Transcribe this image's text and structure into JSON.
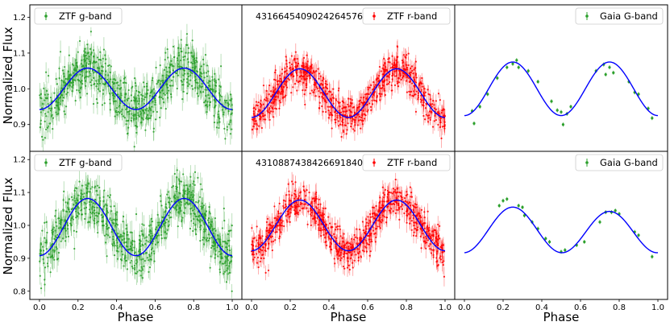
{
  "figure": {
    "ylabel": "Normalized Flux",
    "xlabel": "Phase"
  },
  "chart_data": [
    {
      "type": "scatter",
      "row": 0,
      "col": 0,
      "title": "",
      "xlabel": "",
      "ylabel": "Normalized Flux",
      "xlim": [
        -0.05,
        1.05
      ],
      "ylim": [
        0.825,
        1.235
      ],
      "yticks": [
        0.9,
        1.0,
        1.1,
        1.2
      ],
      "xticks": [],
      "legend": {
        "label": "ZTF g-band",
        "placement": "top-left"
      },
      "object_id": "",
      "series": [
        {
          "name": "ZTF g-band",
          "color": "#2ca02c",
          "model": {
            "mean": 1.0,
            "amp2": 0.058,
            "amp1": 0.0,
            "phase_ref": 0.25
          },
          "n_points": 850,
          "scatter": 0.035,
          "errorbar": 0.025
        }
      ],
      "fit_color": "#0000ff"
    },
    {
      "type": "scatter",
      "row": 0,
      "col": 1,
      "title": "",
      "xlabel": "",
      "ylabel": "",
      "xlim": [
        -0.05,
        1.05
      ],
      "ylim": [
        0.825,
        1.235
      ],
      "yticks": [],
      "xticks": [],
      "legend": {
        "label": "ZTF r-band",
        "placement": "top-right"
      },
      "object_id": "4316645409024264576",
      "series": [
        {
          "name": "ZTF r-band",
          "color": "#ff0000",
          "model": {
            "mean": 0.988,
            "amp2": 0.068,
            "amp1": 0.0,
            "phase_ref": 0.25
          },
          "n_points": 850,
          "scatter": 0.025,
          "errorbar": 0.02
        }
      ],
      "fit_color": "#0000ff"
    },
    {
      "type": "scatter",
      "row": 0,
      "col": 2,
      "title": "",
      "xlabel": "",
      "ylabel": "",
      "xlim": [
        -0.05,
        1.05
      ],
      "ylim": [
        0.825,
        1.235
      ],
      "yticks": [],
      "xticks": [],
      "legend": {
        "label": "Gaia G-band",
        "placement": "top-right"
      },
      "object_id": "",
      "series": [
        {
          "name": "Gaia G-band",
          "color": "#2ca02c",
          "points": [
            {
              "x": 0.04,
              "y": 0.938
            },
            {
              "x": 0.05,
              "y": 0.903
            },
            {
              "x": 0.08,
              "y": 0.95
            },
            {
              "x": 0.12,
              "y": 0.985
            },
            {
              "x": 0.17,
              "y": 1.03
            },
            {
              "x": 0.22,
              "y": 1.06
            },
            {
              "x": 0.25,
              "y": 1.07
            },
            {
              "x": 0.27,
              "y": 1.08
            },
            {
              "x": 0.28,
              "y": 1.06
            },
            {
              "x": 0.33,
              "y": 1.05
            },
            {
              "x": 0.38,
              "y": 1.02
            },
            {
              "x": 0.45,
              "y": 0.965
            },
            {
              "x": 0.48,
              "y": 0.94
            },
            {
              "x": 0.5,
              "y": 0.935
            },
            {
              "x": 0.51,
              "y": 0.9
            },
            {
              "x": 0.53,
              "y": 0.93
            },
            {
              "x": 0.55,
              "y": 0.95
            },
            {
              "x": 0.68,
              "y": 1.05
            },
            {
              "x": 0.72,
              "y": 1.068
            },
            {
              "x": 0.73,
              "y": 1.04
            },
            {
              "x": 0.75,
              "y": 1.06
            },
            {
              "x": 0.77,
              "y": 1.045
            },
            {
              "x": 0.85,
              "y": 1.02
            },
            {
              "x": 0.88,
              "y": 0.99
            },
            {
              "x": 0.9,
              "y": 0.985
            },
            {
              "x": 0.95,
              "y": 0.945
            },
            {
              "x": 0.97,
              "y": 0.918
            }
          ]
        }
      ],
      "model": {
        "mean": 1.0,
        "amp2": 0.075,
        "amp1": 0.0,
        "phase_ref": 0.25
      },
      "fit_color": "#0000ff"
    },
    {
      "type": "scatter",
      "row": 1,
      "col": 0,
      "title": "",
      "xlabel": "Phase",
      "ylabel": "Normalized Flux",
      "xlim": [
        -0.05,
        1.05
      ],
      "ylim": [
        0.775,
        1.225
      ],
      "yticks": [
        0.8,
        0.9,
        1.0,
        1.1,
        1.2
      ],
      "xticks": [
        "0.0",
        "0.2",
        "0.4",
        "0.6",
        "0.8",
        "1.0"
      ],
      "legend": {
        "label": "ZTF g-band",
        "placement": "top-left"
      },
      "object_id": "",
      "series": [
        {
          "name": "ZTF g-band",
          "color": "#2ca02c",
          "model": {
            "mean": 0.995,
            "amp2": 0.087,
            "amp1": 0.0,
            "phase_ref": 0.25
          },
          "n_points": 850,
          "scatter": 0.04,
          "errorbar": 0.028
        }
      ],
      "fit_color": "#0000ff"
    },
    {
      "type": "scatter",
      "row": 1,
      "col": 1,
      "title": "",
      "xlabel": "Phase",
      "ylabel": "",
      "xlim": [
        -0.05,
        1.05
      ],
      "ylim": [
        0.775,
        1.225
      ],
      "yticks": [],
      "xticks": [
        "0.0",
        "0.2",
        "0.4",
        "0.6",
        "0.8",
        "1.0"
      ],
      "legend": {
        "label": "ZTF r-band",
        "placement": "top-right"
      },
      "object_id": "4310887438426691840",
      "series": [
        {
          "name": "ZTF r-band",
          "color": "#ff0000",
          "model": {
            "mean": 1.0,
            "amp2": 0.077,
            "amp1": 0.0,
            "phase_ref": 0.25
          },
          "n_points": 850,
          "scatter": 0.028,
          "errorbar": 0.022
        }
      ],
      "fit_color": "#0000ff"
    },
    {
      "type": "scatter",
      "row": 1,
      "col": 2,
      "title": "",
      "xlabel": "Phase",
      "ylabel": "",
      "xlim": [
        -0.05,
        1.05
      ],
      "ylim": [
        0.775,
        1.225
      ],
      "yticks": [],
      "xticks": [
        "0.0",
        "0.2",
        "0.4",
        "0.6",
        "0.8",
        "1.0"
      ],
      "legend": {
        "label": "Gaia G-band",
        "placement": "top-right"
      },
      "object_id": "",
      "series": [
        {
          "name": "Gaia G-band",
          "color": "#2ca02c",
          "points": [
            {
              "x": 0.18,
              "y": 1.06
            },
            {
              "x": 0.2,
              "y": 1.075
            },
            {
              "x": 0.22,
              "y": 1.08
            },
            {
              "x": 0.28,
              "y": 1.06
            },
            {
              "x": 0.3,
              "y": 1.055
            },
            {
              "x": 0.31,
              "y": 1.03
            },
            {
              "x": 0.35,
              "y": 1.01
            },
            {
              "x": 0.38,
              "y": 0.99
            },
            {
              "x": 0.42,
              "y": 0.96
            },
            {
              "x": 0.44,
              "y": 0.95
            },
            {
              "x": 0.5,
              "y": 0.92
            },
            {
              "x": 0.52,
              "y": 0.925
            },
            {
              "x": 0.58,
              "y": 0.94
            },
            {
              "x": 0.62,
              "y": 0.95
            },
            {
              "x": 0.7,
              "y": 1.01
            },
            {
              "x": 0.73,
              "y": 1.04
            },
            {
              "x": 0.76,
              "y": 1.04
            },
            {
              "x": 0.78,
              "y": 1.045
            },
            {
              "x": 0.8,
              "y": 1.035
            },
            {
              "x": 0.88,
              "y": 0.98
            },
            {
              "x": 0.9,
              "y": 0.97
            },
            {
              "x": 0.97,
              "y": 0.905
            }
          ]
        }
      ],
      "model": {
        "mean": 0.983,
        "amp2": 0.066,
        "amp1": 0.0065,
        "phase_ref": 0.25
      },
      "fit_color": "#0000ff"
    }
  ]
}
